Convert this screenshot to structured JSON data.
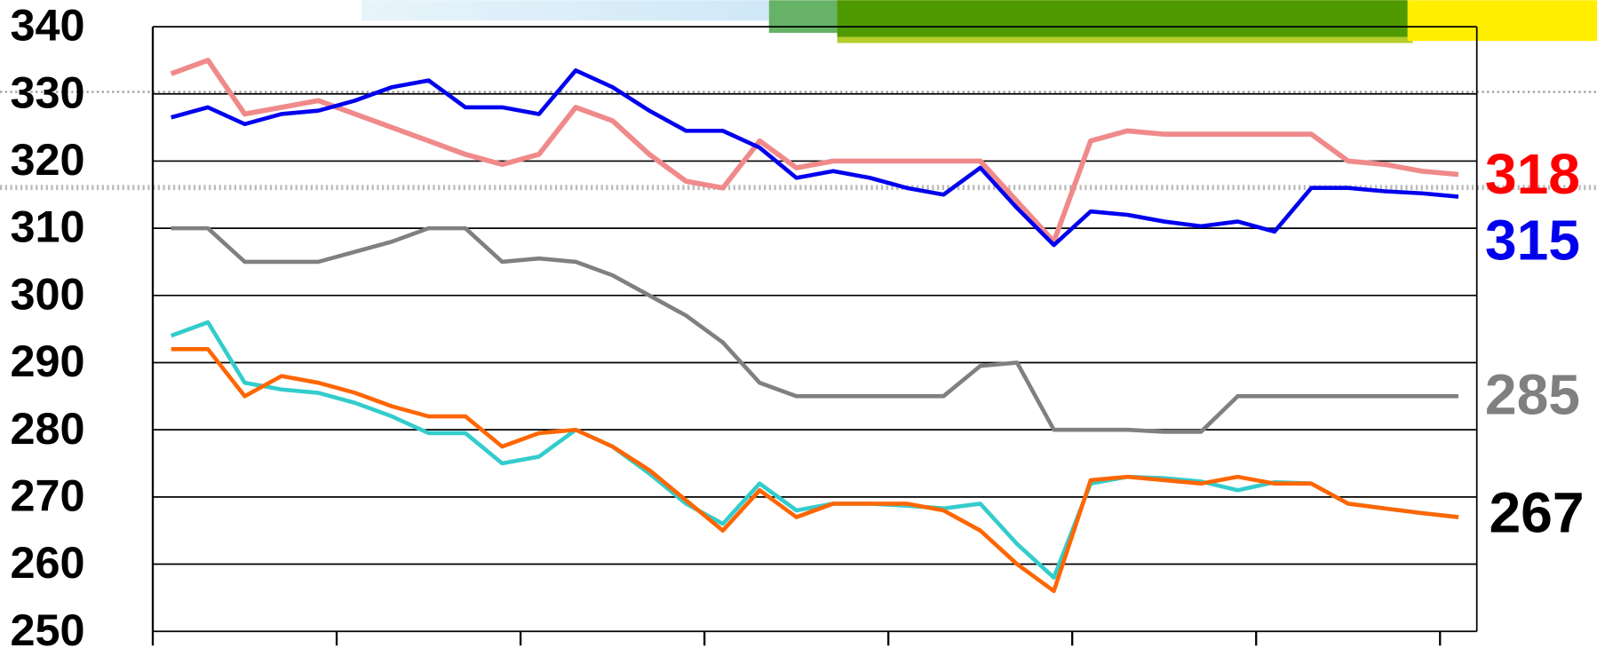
{
  "chart_data": {
    "type": "line",
    "x": [
      0.1,
      0.3,
      0.5,
      0.7,
      0.9,
      1.1,
      1.3,
      1.5,
      1.7,
      1.9,
      2.1,
      2.3,
      2.5,
      2.7,
      2.9,
      3.1,
      3.3,
      3.5,
      3.7,
      3.9,
      4.1,
      4.3,
      4.5,
      4.7,
      4.9,
      5.1,
      5.3,
      5.5,
      5.7,
      5.9,
      6.1,
      6.3,
      6.5,
      6.7,
      6.9,
      7.1
    ],
    "xlim": [
      0,
      7.2
    ],
    "xticks": [
      0,
      1,
      2,
      3,
      4,
      5,
      6,
      7
    ],
    "ylim": [
      250,
      340
    ],
    "yticks": [
      250,
      260,
      270,
      280,
      290,
      300,
      310,
      320,
      330,
      340
    ],
    "grid": true,
    "series": [
      {
        "color": "#f08a8a",
        "values": [
          333,
          335,
          327,
          328,
          329,
          327,
          325,
          323,
          321,
          319.5,
          321,
          328,
          326,
          321,
          317,
          316,
          323,
          319,
          320,
          320,
          320,
          320,
          320,
          314,
          308,
          323,
          324.5,
          324,
          324,
          324,
          324,
          324,
          320,
          319.5,
          318.5,
          318
        ]
      },
      {
        "color": "#0000ee",
        "values": [
          326.5,
          328,
          325.5,
          327,
          327.5,
          329,
          331,
          332,
          328,
          328,
          327,
          333.5,
          331,
          327.5,
          324.5,
          324.5,
          322,
          317.5,
          318.5,
          317.5,
          316,
          315,
          319,
          313,
          307.5,
          312.5,
          312,
          311,
          310.3,
          311,
          309.5,
          316,
          316,
          315.5,
          315.2,
          314.7
        ]
      },
      {
        "color": "#808080",
        "values": [
          310,
          310,
          305,
          305,
          305,
          306.5,
          308,
          310,
          310,
          305,
          305.5,
          305,
          303,
          300,
          297,
          293,
          287,
          285,
          285,
          285,
          285,
          285,
          289.5,
          290,
          280,
          280,
          280,
          279.7,
          279.7,
          285,
          285,
          285,
          285,
          285,
          285,
          285
        ]
      },
      {
        "color": "#33cccc",
        "values": [
          294,
          296,
          287,
          286,
          285.5,
          284,
          282,
          279.5,
          279.5,
          275,
          276,
          280,
          277.5,
          273.5,
          269,
          266,
          272,
          268,
          269,
          269,
          268.7,
          268.3,
          269,
          263,
          258,
          272,
          273,
          272.8,
          272.3,
          271,
          272.2,
          272,
          269,
          268.3,
          267.6,
          267
        ]
      },
      {
        "color": "#ff6600",
        "values": [
          292,
          292,
          285,
          288,
          287,
          285.5,
          283.5,
          282,
          282,
          277.5,
          279.5,
          280,
          277.5,
          274,
          269.5,
          265,
          271,
          267,
          269,
          269,
          269,
          268,
          265,
          260,
          256,
          272.5,
          273,
          272.5,
          272,
          273,
          272,
          272,
          269,
          268.3,
          267.6,
          267
        ]
      }
    ],
    "annotations": [
      {
        "text": "318",
        "color": "#ff0000"
      },
      {
        "text": "315",
        "color": "#0000ee"
      },
      {
        "text": "285",
        "color": "#808080"
      },
      {
        "text": "267",
        "color": "#000000"
      }
    ]
  }
}
